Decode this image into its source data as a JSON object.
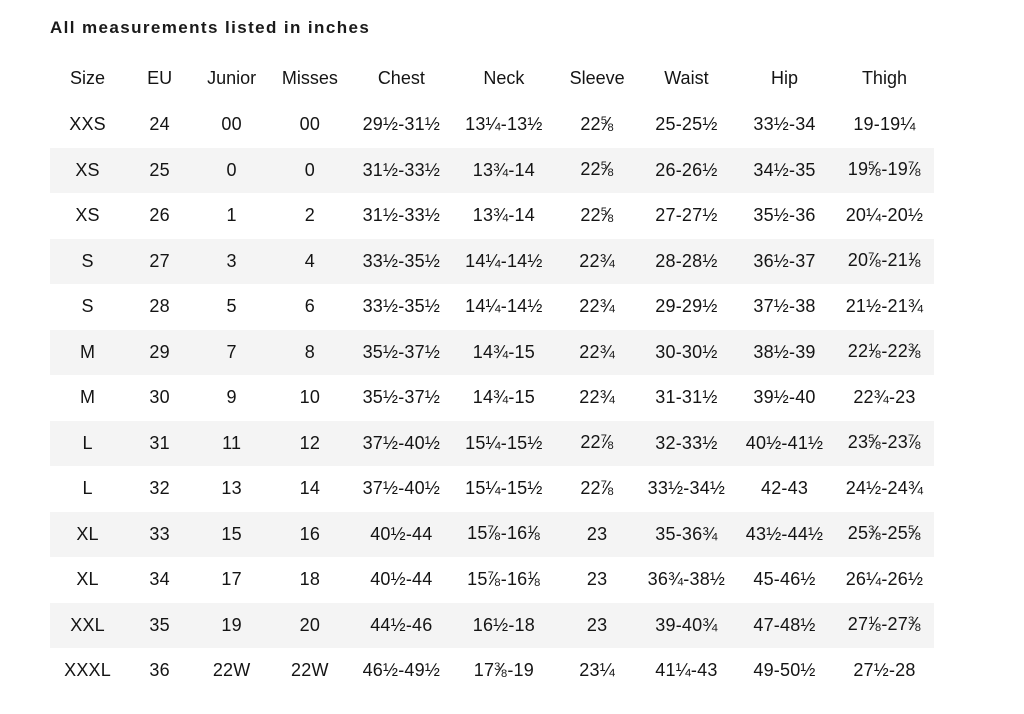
{
  "chart_data": {
    "type": "table",
    "title": "All measurements listed in inches",
    "columns": [
      "Size",
      "EU",
      "Junior",
      "Misses",
      "Chest",
      "Neck",
      "Sleeve",
      "Waist",
      "Hip",
      "Thigh"
    ],
    "rows": [
      [
        "XXS",
        "24",
        "00",
        "00",
        "29½-31½",
        "13¼-13½",
        "22⅝",
        "25-25½",
        "33½-34",
        "19-19¼"
      ],
      [
        "XS",
        "25",
        "0",
        "0",
        "31½-33½",
        "13¾-14",
        "22⅝",
        "26-26½",
        "34½-35",
        "19⅝-19⅞"
      ],
      [
        "XS",
        "26",
        "1",
        "2",
        "31½-33½",
        "13¾-14",
        "22⅝",
        "27-27½",
        "35½-36",
        "20¼-20½"
      ],
      [
        "S",
        "27",
        "3",
        "4",
        "33½-35½",
        "14¼-14½",
        "22¾",
        "28-28½",
        "36½-37",
        "20⅞-21⅛"
      ],
      [
        "S",
        "28",
        "5",
        "6",
        "33½-35½",
        "14¼-14½",
        "22¾",
        "29-29½",
        "37½-38",
        "21½-21¾"
      ],
      [
        "M",
        "29",
        "7",
        "8",
        "35½-37½",
        "14¾-15",
        "22¾",
        "30-30½",
        "38½-39",
        "22⅛-22⅜"
      ],
      [
        "M",
        "30",
        "9",
        "10",
        "35½-37½",
        "14¾-15",
        "22¾",
        "31-31½",
        "39½-40",
        "22¾-23"
      ],
      [
        "L",
        "31",
        "11",
        "12",
        "37½-40½",
        "15¼-15½",
        "22⅞",
        "32-33½",
        "40½-41½",
        "23⅝-23⅞"
      ],
      [
        "L",
        "32",
        "13",
        "14",
        "37½-40½",
        "15¼-15½",
        "22⅞",
        "33½-34½",
        "42-43",
        "24½-24¾"
      ],
      [
        "XL",
        "33",
        "15",
        "16",
        "40½-44",
        "15⅞-16⅛",
        "23",
        "35-36¾",
        "43½-44½",
        "25⅜-25⅝"
      ],
      [
        "XL",
        "34",
        "17",
        "18",
        "40½-44",
        "15⅞-16⅛",
        "23",
        "36¾-38½",
        "45-46½",
        "26¼-26½"
      ],
      [
        "XXL",
        "35",
        "19",
        "20",
        "44½-46",
        "16½-18",
        "23",
        "39-40¾",
        "47-48½",
        "27⅛-27⅜"
      ],
      [
        "XXXL",
        "36",
        "22W",
        "22W",
        "46½-49½",
        "17⅜-19",
        "23¼",
        "41¼-43",
        "49-50½",
        "27½-28"
      ]
    ],
    "layout_hints": {
      "zebra_striping": "even rows shaded",
      "stripe_color": "#f4f4f4",
      "text_color": "#141414",
      "background_color": "#ffffff",
      "units": "inches"
    }
  }
}
